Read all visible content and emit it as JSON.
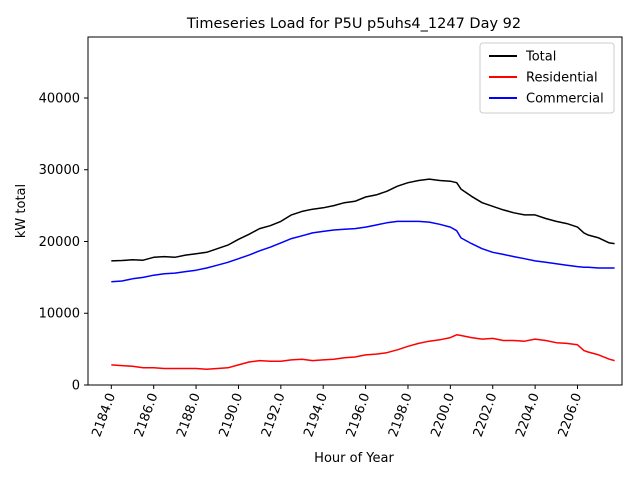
{
  "chart_data": {
    "type": "line",
    "title": "Timeseries Load for P5U p5uhs4_1247  Day 92",
    "xlabel": "Hour of Year",
    "ylabel": "kW total",
    "xlim": [
      2182.9,
      2208.1
    ],
    "ylim": [
      0,
      48500
    ],
    "xticks": [
      2184,
      2186,
      2188,
      2190,
      2192,
      2194,
      2196,
      2198,
      2200,
      2202,
      2204,
      2206
    ],
    "xtick_labels": [
      "2184.0",
      "2186.0",
      "2188.0",
      "2190.0",
      "2192.0",
      "2194.0",
      "2196.0",
      "2198.0",
      "2200.0",
      "2202.0",
      "2204.0",
      "2206.0"
    ],
    "yticks": [
      0,
      10000,
      20000,
      30000,
      40000
    ],
    "ytick_labels": [
      "0",
      "10000",
      "20000",
      "30000",
      "40000"
    ],
    "legend_position": "top-right",
    "x": [
      2184.0,
      2184.5,
      2185.0,
      2185.5,
      2186.0,
      2186.5,
      2187.0,
      2187.5,
      2188.0,
      2188.5,
      2189.0,
      2189.5,
      2190.0,
      2190.5,
      2191.0,
      2191.5,
      2192.0,
      2192.5,
      2193.0,
      2193.5,
      2194.0,
      2194.5,
      2195.0,
      2195.5,
      2196.0,
      2196.5,
      2197.0,
      2197.5,
      2198.0,
      2198.5,
      2199.0,
      2199.5,
      2200.0,
      2200.3,
      2200.5,
      2201.0,
      2201.5,
      2202.0,
      2202.5,
      2203.0,
      2203.5,
      2204.0,
      2204.5,
      2205.0,
      2205.5,
      2206.0,
      2206.3,
      2206.5,
      2207.0,
      2207.5,
      2207.75
    ],
    "series": [
      {
        "name": "Total",
        "color": "#000000",
        "values": [
          17300,
          17350,
          17450,
          17400,
          17800,
          17900,
          17800,
          18100,
          18300,
          18500,
          19000,
          19500,
          20300,
          21000,
          21800,
          22200,
          22800,
          23700,
          24200,
          24500,
          24700,
          25000,
          25400,
          25600,
          26200,
          26500,
          27000,
          27700,
          28200,
          28500,
          28700,
          28500,
          28400,
          28200,
          27300,
          26300,
          25400,
          24900,
          24400,
          24000,
          23700,
          23700,
          23200,
          22800,
          22500,
          22000,
          21200,
          20900,
          20500,
          19800,
          19700
        ]
      },
      {
        "name": "Residential",
        "color": "#ff0000",
        "values": [
          2800,
          2700,
          2600,
          2400,
          2400,
          2300,
          2300,
          2300,
          2300,
          2200,
          2300,
          2400,
          2800,
          3200,
          3400,
          3300,
          3300,
          3500,
          3600,
          3400,
          3500,
          3600,
          3800,
          3900,
          4200,
          4300,
          4500,
          4900,
          5400,
          5800,
          6100,
          6300,
          6600,
          7000,
          6900,
          6600,
          6400,
          6500,
          6200,
          6200,
          6100,
          6400,
          6200,
          5900,
          5800,
          5600,
          4800,
          4600,
          4200,
          3600,
          3400
        ]
      },
      {
        "name": "Commercial",
        "color": "#0000ff",
        "values": [
          14400,
          14500,
          14800,
          15000,
          15300,
          15500,
          15600,
          15800,
          16000,
          16300,
          16700,
          17100,
          17600,
          18100,
          18700,
          19200,
          19800,
          20400,
          20800,
          21200,
          21400,
          21600,
          21700,
          21800,
          22000,
          22300,
          22600,
          22800,
          22800,
          22800,
          22700,
          22400,
          22000,
          21500,
          20500,
          19700,
          19000,
          18500,
          18200,
          17900,
          17600,
          17300,
          17100,
          16900,
          16700,
          16500,
          16400,
          16400,
          16300,
          16300,
          16300
        ]
      }
    ]
  }
}
